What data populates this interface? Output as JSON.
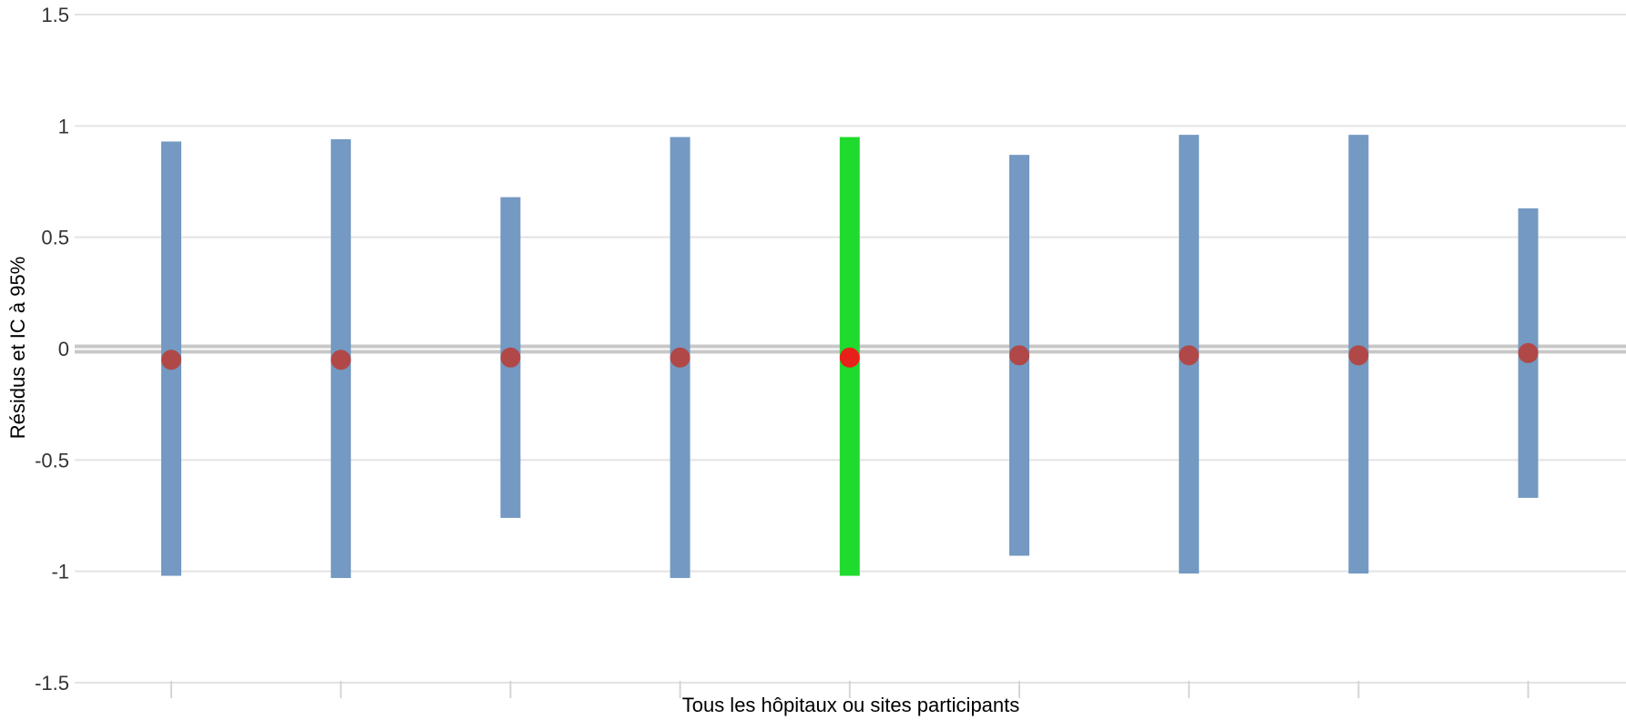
{
  "chart_data": {
    "type": "errorbar",
    "xlabel": "Tous les hôpitaux ou sites participants",
    "ylabel": "Résidus et IC à 95%",
    "ylim": [
      -1.5,
      1.5
    ],
    "yticks": [
      1.5,
      1,
      0.5,
      0,
      -0.5,
      -1,
      -1.5
    ],
    "ytick_labels": [
      "1.5",
      "1",
      "0.5",
      "0",
      "-0.5",
      "-1",
      "-1.5"
    ],
    "grid": true,
    "reference_line": 0,
    "series": [
      {
        "values": [
          -0.05,
          -0.05,
          -0.04,
          -0.04,
          -0.04,
          -0.03,
          -0.03,
          -0.03,
          -0.02
        ],
        "lower": [
          -1.02,
          -1.03,
          -0.76,
          -1.03,
          -1.02,
          -0.93,
          -1.01,
          -1.01,
          -0.67
        ],
        "upper": [
          0.93,
          0.94,
          0.68,
          0.95,
          0.95,
          0.87,
          0.96,
          0.96,
          0.63
        ],
        "highlight_index": 4
      }
    ],
    "colors": {
      "bar": "#7499c2",
      "bar_highlight": "#1edb2e",
      "point": "#b04848",
      "point_highlight": "#e8201a",
      "axis_title": "#d4145a",
      "grid": "#e3e3e3",
      "zero_line": "#c8c8c8"
    }
  }
}
